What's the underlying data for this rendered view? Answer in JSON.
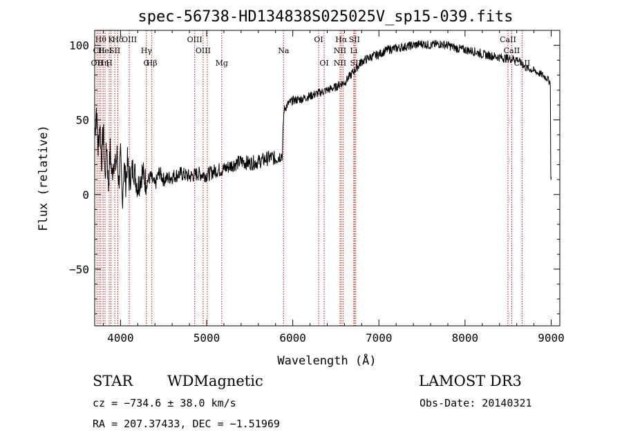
{
  "chart_data": {
    "type": "line",
    "title": "spec-56738-HD134838S025025V_sp15-039.fits",
    "xlabel": "Wavelength (Å)",
    "ylabel": "Flux (relative)",
    "xlim": [
      3700,
      9100
    ],
    "ylim": [
      -88,
      110
    ],
    "xticks": [
      4000,
      5000,
      6000,
      7000,
      8000,
      9000
    ],
    "xtick_labels": [
      "4000",
      "5000",
      "6000",
      "7000",
      "8000",
      "9000"
    ],
    "yticks": [
      -50,
      0,
      50,
      100
    ],
    "ytick_labels": [
      "−50",
      "0",
      "50",
      "100"
    ],
    "series": [
      {
        "name": "flux",
        "x": [
          3700,
          3720,
          3740,
          3760,
          3780,
          3800,
          3820,
          3840,
          3860,
          3880,
          3900,
          3920,
          3940,
          3960,
          3980,
          4000,
          4020,
          4040,
          4060,
          4080,
          4100,
          4150,
          4200,
          4250,
          4300,
          4350,
          4400,
          4450,
          4500,
          4600,
          4700,
          4800,
          4900,
          5000,
          5100,
          5200,
          5300,
          5400,
          5500,
          5600,
          5700,
          5750,
          5800,
          5850,
          5880,
          5890,
          5900,
          5950,
          6000,
          6100,
          6200,
          6300,
          6400,
          6500,
          6550,
          6600,
          6700,
          6800,
          6900,
          7000,
          7100,
          7200,
          7300,
          7400,
          7500,
          7600,
          7700,
          7800,
          7900,
          8000,
          8100,
          8200,
          8300,
          8400,
          8500,
          8600,
          8650,
          8700,
          8800,
          8900,
          8950,
          8990,
          8995,
          9000
        ],
        "y": [
          40,
          58,
          30,
          48,
          22,
          45,
          10,
          35,
          5,
          30,
          12,
          24,
          18,
          26,
          8,
          25,
          -5,
          20,
          8,
          22,
          10,
          18,
          5,
          15,
          8,
          12,
          6,
          15,
          10,
          12,
          14,
          12,
          14,
          13,
          16,
          17,
          20,
          22,
          21,
          22,
          24,
          25,
          24,
          26,
          27,
          48,
          57,
          61,
          63,
          64,
          66,
          68,
          70,
          72,
          74,
          75,
          82,
          89,
          92,
          94,
          97,
          98,
          99,
          100,
          101,
          100,
          101,
          100,
          98,
          97,
          96,
          94,
          93,
          92,
          91,
          91,
          88,
          85,
          83,
          80,
          78,
          75,
          12,
          12
        ]
      }
    ],
    "line_markers": [
      {
        "wavelength": 3727,
        "labels": [
          {
            "text": "OII",
            "row": 3
          }
        ]
      },
      {
        "wavelength": 3750,
        "labels": [
          {
            "text": "CII",
            "row": 2
          }
        ]
      },
      {
        "wavelength": 3771,
        "labels": [
          {
            "text": "Hθ",
            "row": 1
          }
        ]
      },
      {
        "wavelength": 3798,
        "labels": [
          {
            "text": "Hη",
            "row": 3
          }
        ]
      },
      {
        "wavelength": 3820,
        "labels": [
          {
            "text": "HeI",
            "row": 2
          }
        ]
      },
      {
        "wavelength": 3869,
        "labels": [
          {
            "text": "H",
            "row": 3
          }
        ]
      },
      {
        "wavelength": 3889,
        "labels": [
          {
            "text": "K",
            "row": 1
          }
        ]
      },
      {
        "wavelength": 3934,
        "labels": [
          {
            "text": "SII",
            "row": 2
          }
        ]
      },
      {
        "wavelength": 3969,
        "labels": [
          {
            "text": "Hδ",
            "row": 1
          }
        ]
      },
      {
        "wavelength": 4102,
        "labels": [
          {
            "text": "OIII",
            "row": 1
          }
        ]
      },
      {
        "wavelength": 4300,
        "labels": [
          {
            "text": "Hγ",
            "row": 2
          },
          {
            "text": "G",
            "row": 3
          }
        ]
      },
      {
        "wavelength": 4363,
        "labels": [
          {
            "text": "Hβ",
            "row": 3
          }
        ]
      },
      {
        "wavelength": 4861,
        "labels": [
          {
            "text": "OIII",
            "row": 1
          }
        ]
      },
      {
        "wavelength": 4959,
        "labels": [
          {
            "text": "OIII",
            "row": 2
          }
        ]
      },
      {
        "wavelength": 5007,
        "labels": []
      },
      {
        "wavelength": 5175,
        "labels": [
          {
            "text": "Mg",
            "row": 3
          }
        ]
      },
      {
        "wavelength": 5893,
        "labels": [
          {
            "text": "Na",
            "row": 2
          }
        ]
      },
      {
        "wavelength": 6300,
        "labels": [
          {
            "text": "OI",
            "row": 1
          }
        ]
      },
      {
        "wavelength": 6364,
        "labels": [
          {
            "text": "OI",
            "row": 3
          }
        ]
      },
      {
        "wavelength": 6548,
        "labels": [
          {
            "text": "NII",
            "row": 2
          },
          {
            "text": "NII",
            "row": 3
          }
        ]
      },
      {
        "wavelength": 6563,
        "labels": [
          {
            "text": "Hα",
            "row": 1
          }
        ]
      },
      {
        "wavelength": 6583,
        "labels": []
      },
      {
        "wavelength": 6708,
        "labels": [
          {
            "text": "Li",
            "row": 2
          }
        ]
      },
      {
        "wavelength": 6716,
        "labels": [
          {
            "text": "SII",
            "row": 1
          }
        ]
      },
      {
        "wavelength": 6731,
        "labels": [
          {
            "text": "SII",
            "row": 3
          }
        ]
      },
      {
        "wavelength": 8498,
        "labels": [
          {
            "text": "CaII",
            "row": 1
          }
        ]
      },
      {
        "wavelength": 8542,
        "labels": [
          {
            "text": "CaII",
            "row": 2
          }
        ]
      },
      {
        "wavelength": 8662,
        "labels": [
          {
            "text": "CaII",
            "row": 3
          }
        ]
      }
    ]
  },
  "info": {
    "object_type": "STAR",
    "subclass": "WDMagnetic",
    "survey": "LAMOST DR3",
    "redshift": "cz = −734.6 ± 38.0 km/s",
    "obs_date": "Obs-Date: 20140321",
    "coords": "RA = 207.37433, DEC =  −1.51969"
  },
  "colors": {
    "axis": "#000000",
    "spectrum": "#000000",
    "marker_line": "#cc0000"
  }
}
